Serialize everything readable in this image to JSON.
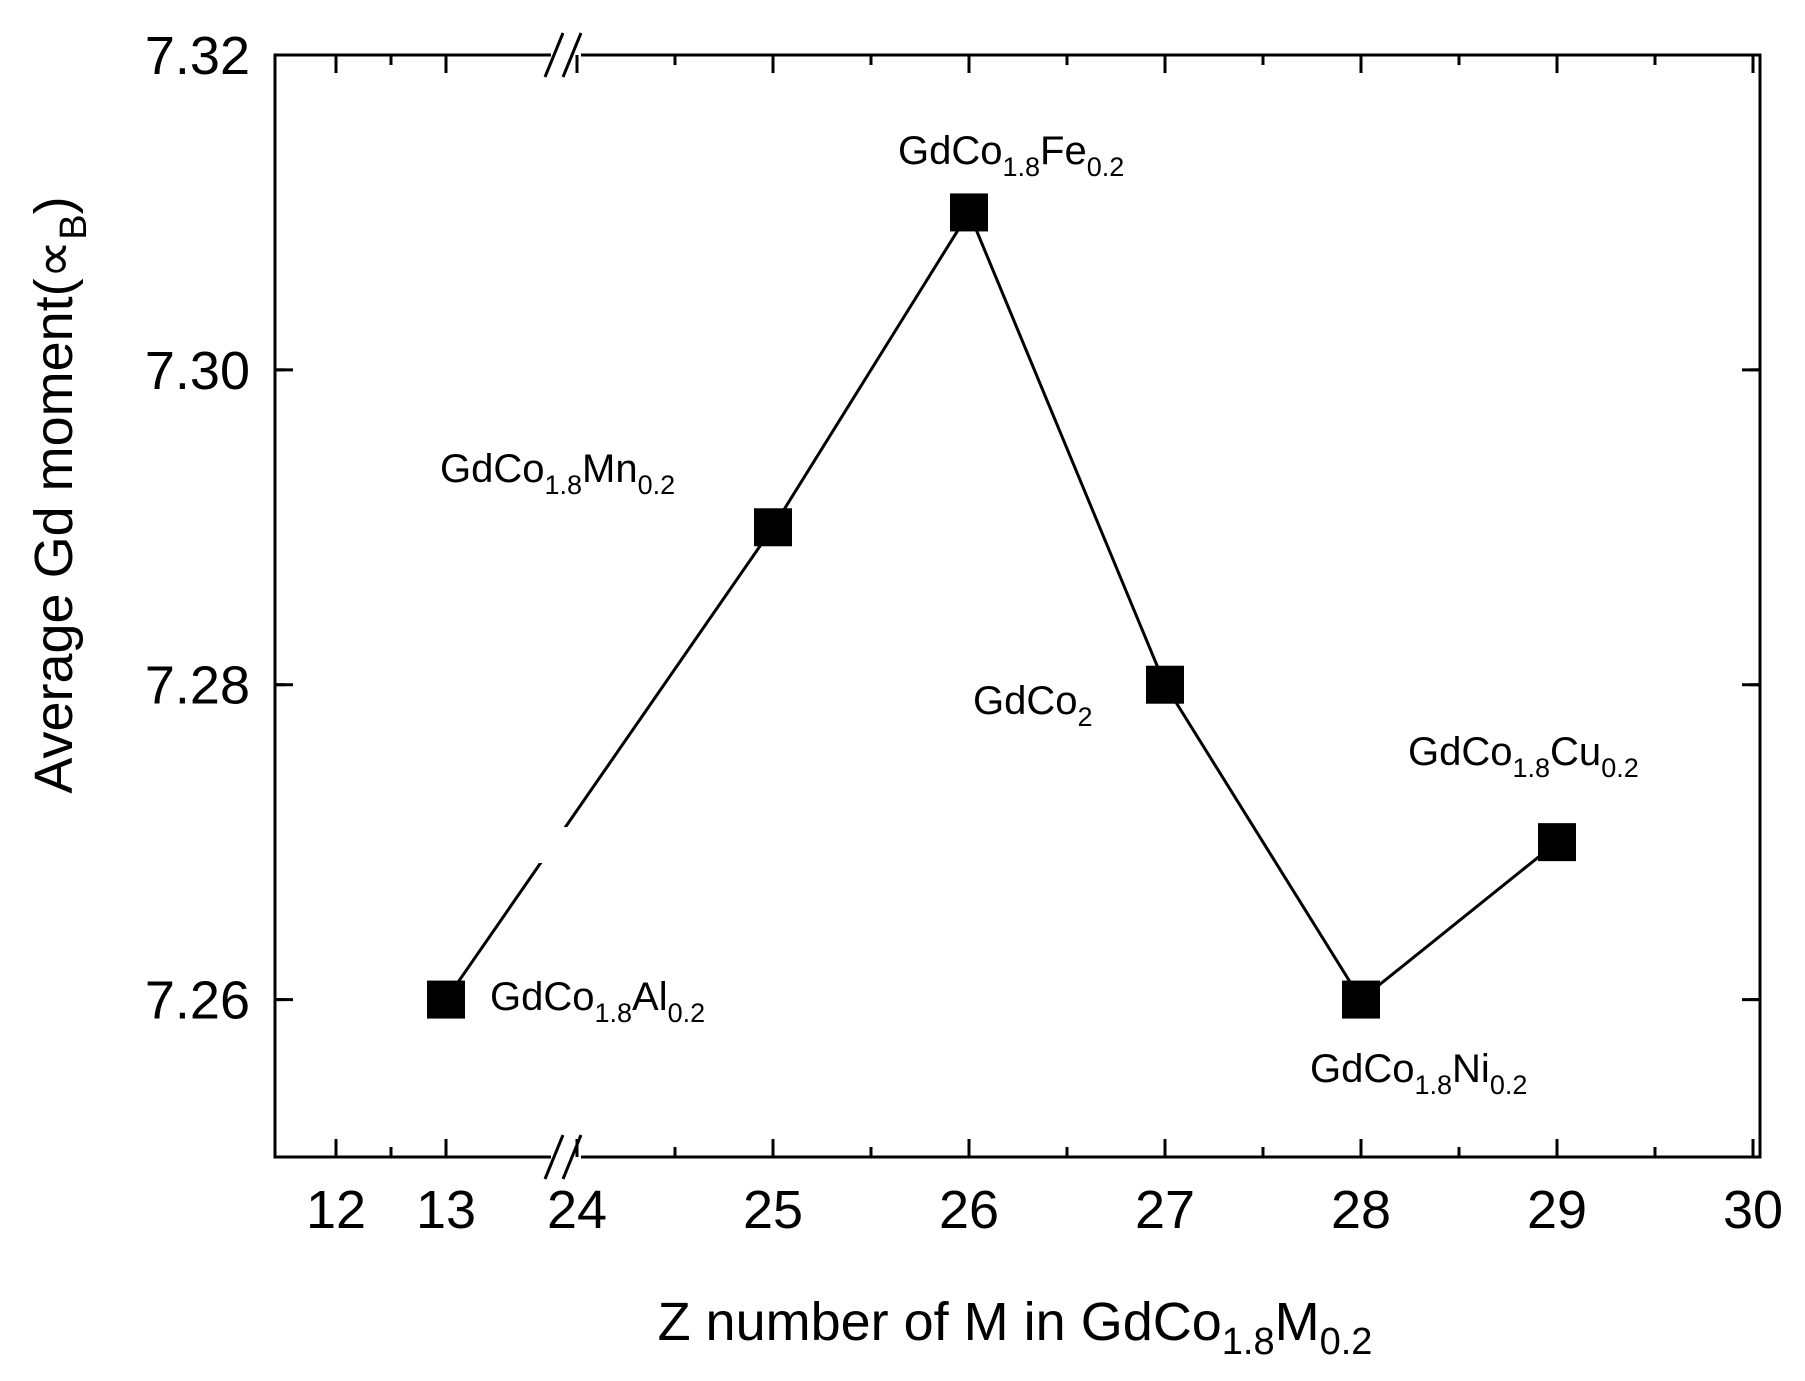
{
  "chart_data": {
    "type": "line",
    "title": "",
    "xlabel": {
      "main": "Z number of M in GdCo",
      "sub1": "1.8",
      "mid": "M",
      "sub2": "0.2"
    },
    "ylabel": {
      "main": "Average Gd moment(",
      "sym": "∝",
      "sub": "B",
      "close": ")"
    },
    "ylim": [
      7.25,
      7.32
    ],
    "y_ticks": [
      7.26,
      7.28,
      7.3,
      7.32
    ],
    "y_tick_labels": [
      "7.26",
      "7.28",
      "7.30",
      "7.32"
    ],
    "x_tick_labels": [
      "12",
      "13",
      "24",
      "25",
      "26",
      "27",
      "28",
      "29",
      "30"
    ],
    "x_break": "between 13 and 24",
    "series": [
      {
        "marker": "square",
        "x": [
          13,
          25,
          26,
          27,
          28,
          29
        ],
        "y": [
          7.26,
          7.29,
          7.31,
          7.28,
          7.26,
          7.27
        ]
      }
    ],
    "annotations": [
      {
        "parts": [
          [
            "GdCo",
            ""
          ],
          [
            "1.8",
            "sub"
          ],
          [
            "Al",
            ""
          ],
          [
            "0.2",
            "sub"
          ]
        ]
      },
      {
        "parts": [
          [
            "GdCo",
            ""
          ],
          [
            "1.8",
            "sub"
          ],
          [
            "Mn",
            ""
          ],
          [
            "0.2",
            "sub"
          ]
        ]
      },
      {
        "parts": [
          [
            "GdCo",
            ""
          ],
          [
            "1.8",
            "sub"
          ],
          [
            "Fe",
            ""
          ],
          [
            "0.2",
            "sub"
          ]
        ]
      },
      {
        "parts": [
          [
            "GdCo",
            ""
          ],
          [
            "2",
            "sub"
          ]
        ]
      },
      {
        "parts": [
          [
            "GdCo",
            ""
          ],
          [
            "1.8",
            "sub"
          ],
          [
            "Ni",
            ""
          ],
          [
            "0.2",
            "sub"
          ]
        ]
      },
      {
        "parts": [
          [
            "GdCo",
            ""
          ],
          [
            "1.8",
            "sub"
          ],
          [
            "Cu",
            ""
          ],
          [
            "0.2",
            "sub"
          ]
        ]
      }
    ],
    "colors": {
      "axes": "#000000",
      "series": "#000000",
      "background": "#ffffff"
    }
  }
}
